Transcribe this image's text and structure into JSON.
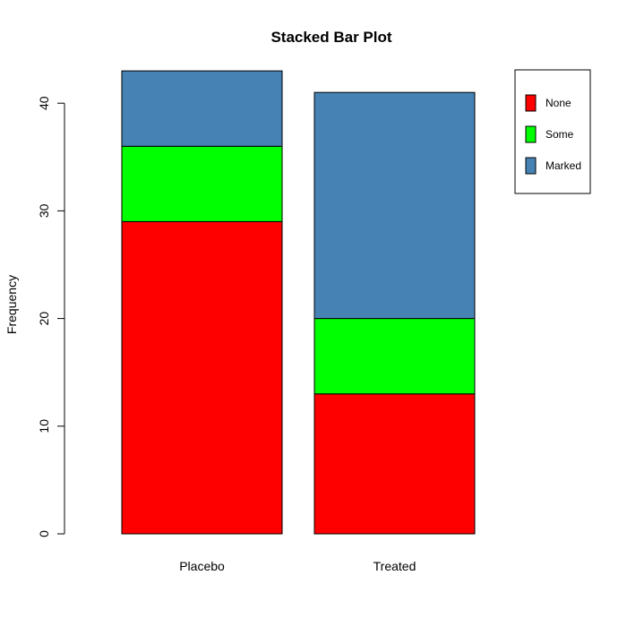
{
  "chart_data": {
    "type": "bar",
    "stacked": true,
    "title": "Stacked Bar Plot",
    "xlabel": "",
    "ylabel": "Frequency",
    "categories": [
      "Placebo",
      "Treated"
    ],
    "series": [
      {
        "name": "None",
        "values": [
          29,
          13
        ],
        "color": "#ff0000"
      },
      {
        "name": "Some",
        "values": [
          7,
          7
        ],
        "color": "#00ff00"
      },
      {
        "name": "Marked",
        "values": [
          7,
          21
        ],
        "color": "#4682b4"
      }
    ],
    "yticks": [
      0,
      10,
      20,
      30,
      40
    ],
    "ylim": [
      0,
      43
    ],
    "grid": false,
    "legend_position": "top-right"
  }
}
